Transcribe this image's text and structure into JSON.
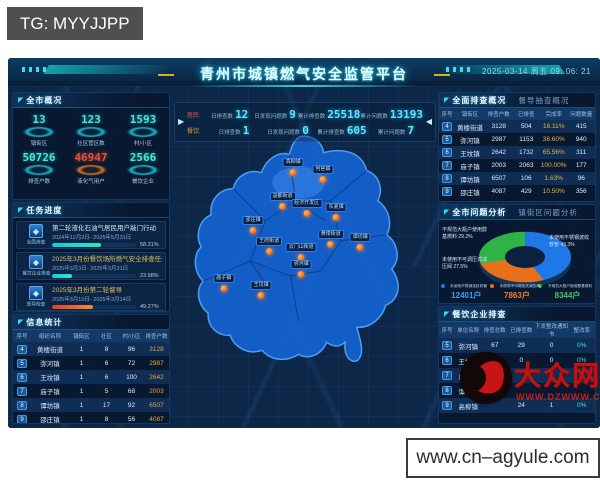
{
  "watermark_tg": {
    "text": "TG: MYYJJPP"
  },
  "watermark_site": {
    "text": "www.cn–agyule.com"
  },
  "watermark_logo": {
    "name": "大众网",
    "url": "WWW.DZWWW.COM"
  },
  "header": {
    "title": "青州市城镇燃气安全监管平台",
    "datetime": "2025-03-14 周五 09: 06: 21"
  },
  "overview": {
    "title": "全市概况",
    "stats": [
      {
        "value": "13",
        "label": "镇街区"
      },
      {
        "value": "123",
        "label": "社区管区数"
      },
      {
        "value": "1593",
        "label": "村/小区"
      },
      {
        "value": "50726",
        "label": "排查户数"
      },
      {
        "value": "46947",
        "label": "液化气用户"
      },
      {
        "value": "2566",
        "label": "餐饮企业"
      }
    ]
  },
  "tasks": {
    "title": "任务进度",
    "items": [
      {
        "category": "全面排查",
        "name": "第二轮液化石油气居民用户敲门行动",
        "dates": "2024年12月2日- 2025年5月31日",
        "percent": "58.31%"
      },
      {
        "category": "餐饮企业排查",
        "name": "2025年3月份餐饮场所燃气安全排查任务",
        "dates": "2025年3月3日- 2025年3月31日",
        "percent": "23.98%"
      },
      {
        "category": "督导检查",
        "name": "2025年3月份第二轮督导",
        "dates": "2025年3月10日- 2025年3月14日",
        "percent": "49.27%"
      }
    ]
  },
  "info_stats": {
    "title": "信息统计",
    "headers": [
      "序号",
      "组织名称",
      "镇街区",
      "社区",
      "村/小区",
      "排查户数"
    ],
    "rows": [
      [
        "4",
        "黄楼街道",
        "1",
        "8",
        "96",
        "3128"
      ],
      [
        "5",
        "弥河镇",
        "1",
        "6",
        "72",
        "2987"
      ],
      [
        "6",
        "王坟镇",
        "1",
        "6",
        "100",
        "2642"
      ],
      [
        "7",
        "庙子镇",
        "1",
        "5",
        "68",
        "2003"
      ],
      [
        "8",
        "谭坊镇",
        "1",
        "17",
        "92",
        "6507"
      ],
      [
        "9",
        "邵庄镇",
        "1",
        "8",
        "56",
        "4087"
      ]
    ]
  },
  "carousel": {
    "rows": [
      {
        "tag": "居民:",
        "items": [
          {
            "label": "日排查数",
            "value": "12"
          },
          {
            "label": "日发现问题数",
            "value": "9"
          },
          {
            "label": "累计排查数",
            "value": "25518"
          },
          {
            "label": "累计问题数",
            "value": "13193"
          }
        ]
      },
      {
        "tag": "餐饮:",
        "items": [
          {
            "label": "日排查数",
            "value": "1"
          },
          {
            "label": "日发现问题数",
            "value": "0"
          },
          {
            "label": "累计排查数",
            "value": "605"
          },
          {
            "label": "累计问题数",
            "value": "7"
          }
        ]
      }
    ],
    "arrow_left": "▶",
    "arrow_right": "◀"
  },
  "map": {
    "towns": [
      {
        "name": "高柳镇"
      },
      {
        "name": "何官镇"
      },
      {
        "name": "益都街道"
      },
      {
        "name": "经济开发区"
      },
      {
        "name": "东夏镇"
      },
      {
        "name": "邵庄镇"
      },
      {
        "name": "黄楼街道"
      },
      {
        "name": "谭坊镇"
      },
      {
        "name": "王府街道"
      },
      {
        "name": "云门山街道"
      },
      {
        "name": "弥河镇"
      },
      {
        "name": "庙子镇"
      },
      {
        "name": "王坟镇"
      }
    ]
  },
  "survey": {
    "tab_active": "全面排查概况",
    "tab_inactive": "督导抽查概况",
    "headers": [
      "序号",
      "镇街区",
      "排查户数",
      "已排查",
      "完成率",
      "问题数量"
    ],
    "rows": [
      [
        "4",
        "黄楼街道",
        "3128",
        "504",
        "16.11%",
        "415"
      ],
      [
        "5",
        "弥河镇",
        "2987",
        "1153",
        "38.60%",
        "940"
      ],
      [
        "6",
        "王坟镇",
        "2642",
        "1732",
        "65.56%",
        "311"
      ],
      [
        "7",
        "庙子镇",
        "2003",
        "2063",
        "100.00%",
        "177"
      ],
      [
        "8",
        "谭坊镇",
        "6507",
        "106",
        "1.63%",
        "96"
      ],
      [
        "9",
        "邵庄镇",
        "4087",
        "429",
        "10.50%",
        "356"
      ]
    ]
  },
  "problems": {
    "tab_active": "全市问题分析",
    "tab_inactive": "镇街区问题分析",
    "callouts": [
      {
        "text": "不规范大瓶户使用醇基燃料 29.2%"
      },
      {
        "text": "未使用不可调压式减压阀 27.5%"
      },
      {
        "text": "未使用不锈钢波纹软管 43.3%"
      }
    ],
    "legend": [
      {
        "label": "未使用不锈钢波纹软管",
        "value": "12401户"
      },
      {
        "label": "未使用不可调压式减压阀",
        "value": "7863户"
      },
      {
        "label": "不规范大瓶户使用醇基燃料",
        "value": "8344户"
      }
    ]
  },
  "catering": {
    "title": "餐饮企业排查",
    "headers": [
      "序号",
      "单位名称",
      "排查总数",
      "已排查数",
      "下发整改通知书",
      "整改率"
    ],
    "rows": [
      [
        "5",
        "弥河镇",
        "67",
        "29",
        "0",
        "0%"
      ],
      [
        "6",
        "王坟镇",
        "71",
        "0",
        "0",
        "0%"
      ],
      [
        "7",
        "庙子镇",
        "",
        "",
        "",
        ""
      ],
      [
        "8",
        "谭坊镇",
        "",
        "",
        "",
        ""
      ],
      [
        "9",
        "高柳镇",
        "",
        "24",
        "1",
        "0%"
      ]
    ]
  },
  "chart_data": {
    "type": "pie",
    "title": "全市问题分析",
    "labels": [
      "未使用不锈钢波纹软管",
      "未使用不可调压式减压阀",
      "不规范大瓶户使用醇基燃料"
    ],
    "values": [
      43.3,
      27.5,
      29.2
    ],
    "counts": [
      12401,
      7863,
      8344
    ],
    "colors": [
      "#1e78e8",
      "#e8701a",
      "#2fb344"
    ],
    "legend_position": "bottom"
  }
}
